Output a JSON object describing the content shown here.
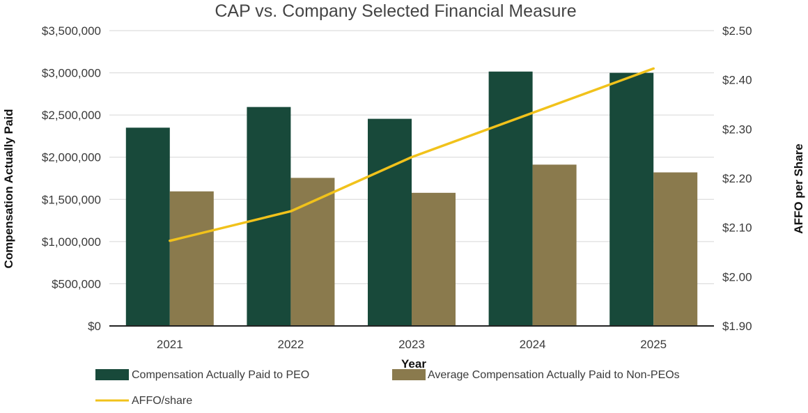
{
  "chart_data": {
    "type": "bar",
    "title": "CAP vs. Company Selected Financial Measure",
    "xlabel": "Year",
    "ylabel": "Compensation Actually Paid",
    "y2label": "AFFO per Share",
    "categories": [
      "2021",
      "2022",
      "2023",
      "2024",
      "2025"
    ],
    "ylim": [
      0,
      3500000
    ],
    "yticks": [
      0,
      500000,
      1000000,
      1500000,
      2000000,
      2500000,
      3000000,
      3500000
    ],
    "ytick_labels": [
      "$0",
      "$500,000",
      "$1,000,000",
      "$1,500,000",
      "$2,000,000",
      "$2,500,000",
      "$3,000,000",
      "$3,500,000"
    ],
    "y2lim": [
      1.9,
      2.5
    ],
    "y2ticks": [
      1.9,
      2.0,
      2.1,
      2.2,
      2.3,
      2.4,
      2.5
    ],
    "y2tick_labels": [
      "$1.90",
      "$2.00",
      "$2.10",
      "$2.20",
      "$2.30",
      "$2.40",
      "$2.50"
    ],
    "grid": true,
    "legend_position": "bottom",
    "series": [
      {
        "name": "Compensation Actually Paid to PEO",
        "kind": "bar",
        "axis": "left",
        "color": "#18493a",
        "values": [
          2350000,
          2595000,
          2455000,
          3015000,
          3000000
        ]
      },
      {
        "name": "Average Compensation Actually Paid to Non-PEOs",
        "kind": "bar",
        "axis": "left",
        "color": "#8a7a4d",
        "values": [
          1595000,
          1755000,
          1578000,
          1912000,
          1820000
        ]
      },
      {
        "name": "AFFO/share",
        "kind": "line",
        "axis": "right",
        "color": "#f1c21b",
        "values": [
          2.073,
          2.133,
          2.243,
          2.333,
          2.423
        ]
      }
    ]
  }
}
